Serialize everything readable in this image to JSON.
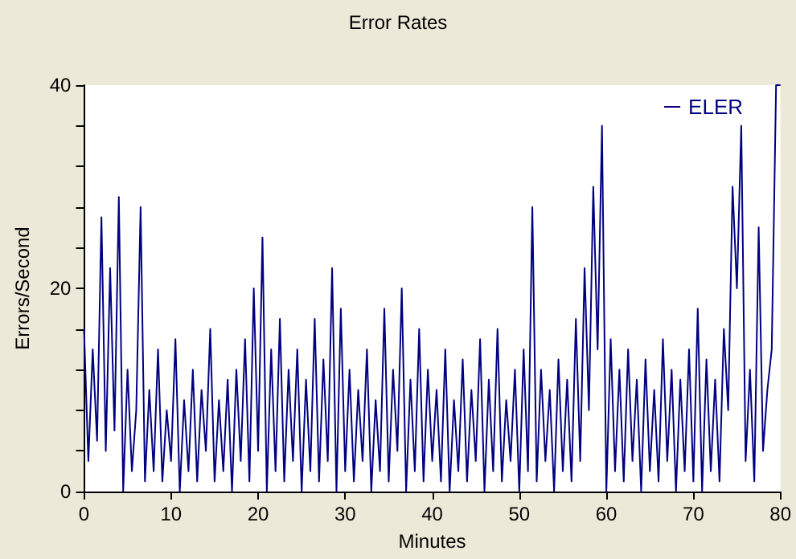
{
  "chart_data": {
    "type": "line",
    "title": "Error Rates",
    "xlabel": "Minutes",
    "ylabel": "Errors/Second",
    "x": [
      0,
      0.5,
      1,
      1.5,
      2,
      2.5,
      3,
      3.5,
      4,
      4.5,
      5,
      5.5,
      6,
      6.5,
      7,
      7.5,
      8,
      8.5,
      9,
      9.5,
      10,
      10.5,
      11,
      11.5,
      12,
      12.5,
      13,
      13.5,
      14,
      14.5,
      15,
      15.5,
      16,
      16.5,
      17,
      17.5,
      18,
      18.5,
      19,
      19.5,
      20,
      20.5,
      21,
      21.5,
      22,
      22.5,
      23,
      23.5,
      24,
      24.5,
      25,
      25.5,
      26,
      26.5,
      27,
      27.5,
      28,
      28.5,
      29,
      29.5,
      30,
      30.5,
      31,
      31.5,
      32,
      32.5,
      33,
      33.5,
      34,
      34.5,
      35,
      35.5,
      36,
      36.5,
      37,
      37.5,
      38,
      38.5,
      39,
      39.5,
      40,
      40.5,
      41,
      41.5,
      42,
      42.5,
      43,
      43.5,
      44,
      44.5,
      45,
      45.5,
      46,
      46.5,
      47,
      47.5,
      48,
      48.5,
      49,
      49.5,
      50,
      50.5,
      51,
      51.5,
      52,
      52.5,
      53,
      53.5,
      54,
      54.5,
      55,
      55.5,
      56,
      56.5,
      57,
      57.5,
      58,
      58.5,
      59,
      59.5,
      60,
      60.5,
      61,
      61.5,
      62,
      62.5,
      63,
      63.5,
      64,
      64.5,
      65,
      65.5,
      66,
      66.5,
      67,
      67.5,
      68,
      68.5,
      69,
      69.5,
      70,
      70.5,
      71,
      71.5,
      72,
      72.5,
      73,
      73.5,
      74,
      74.5,
      75,
      75.5,
      76,
      76.5,
      77,
      77.5,
      78,
      78.5,
      79,
      79.5,
      80
    ],
    "series": [
      {
        "name": "ELER",
        "color": "#000080",
        "values": [
          16,
          3,
          14,
          5,
          27,
          4,
          22,
          6,
          29,
          0,
          12,
          2,
          8,
          28,
          1,
          10,
          2,
          14,
          1,
          8,
          3,
          15,
          0,
          9,
          2,
          12,
          1,
          10,
          4,
          16,
          1,
          9,
          2,
          11,
          0,
          12,
          3,
          15,
          1,
          20,
          4,
          25,
          0,
          14,
          2,
          17,
          1,
          12,
          3,
          14,
          0,
          11,
          2,
          17,
          1,
          13,
          3,
          22,
          0,
          18,
          2,
          12,
          1,
          10,
          3,
          14,
          0,
          9,
          2,
          18,
          1,
          12,
          4,
          20,
          0,
          11,
          2,
          16,
          1,
          12,
          3,
          10,
          1,
          14,
          0,
          9,
          2,
          13,
          1,
          10,
          3,
          15,
          0,
          11,
          2,
          16,
          1,
          9,
          3,
          12,
          0,
          14,
          2,
          28,
          1,
          12,
          3,
          10,
          0,
          13,
          2,
          11,
          1,
          17,
          3,
          22,
          8,
          30,
          14,
          36,
          0,
          15,
          2,
          12,
          1,
          14,
          3,
          11,
          0,
          13,
          2,
          10,
          1,
          15,
          3,
          12,
          0,
          11,
          2,
          14,
          1,
          18,
          0,
          13,
          2,
          11,
          1,
          16,
          8,
          30,
          20,
          36,
          3,
          12,
          1,
          26,
          4,
          10,
          14,
          40,
          40
        ]
      }
    ],
    "xlim": [
      0,
      80
    ],
    "xticks": [
      0,
      10,
      20,
      30,
      40,
      50,
      60,
      70,
      80
    ],
    "ylim": [
      0,
      40
    ],
    "yticks": [
      0,
      {
        "value": 4,
        "label": null
      },
      {
        "value": 8,
        "label": null
      },
      {
        "value": 12,
        "label": null
      },
      {
        "value": 16,
        "label": null
      },
      20,
      {
        "value": 24,
        "label": null
      },
      {
        "value": 28,
        "label": null
      },
      {
        "value": 32,
        "label": null
      },
      {
        "value": 36,
        "label": null
      },
      40
    ],
    "legend": "top right"
  }
}
